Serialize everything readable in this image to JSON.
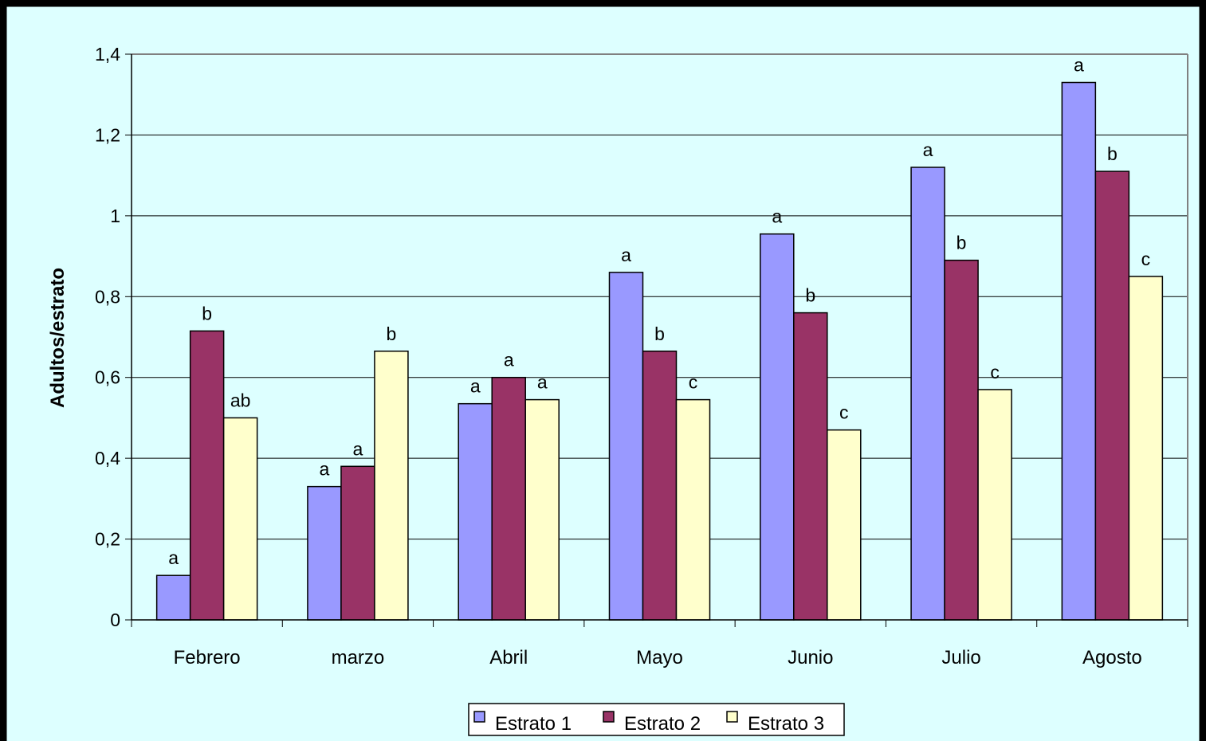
{
  "chart_data": {
    "type": "bar",
    "title": "",
    "xlabel": "",
    "ylabel": "Adultos/estrato",
    "ylim": [
      0,
      1.4
    ],
    "yticks": [
      "0",
      "0,2",
      "0,4",
      "0,6",
      "0,8",
      "1",
      "1,2",
      "1,4"
    ],
    "grid": true,
    "legend_position": "bottom-center",
    "categories": [
      "Febrero",
      "marzo",
      "Abril",
      "Mayo",
      "Junio",
      "Julio",
      "Agosto"
    ],
    "series": [
      {
        "name": "Estrato 1",
        "color": "#9999FF",
        "values": [
          0.11,
          0.33,
          0.535,
          0.86,
          0.955,
          1.12,
          1.33
        ],
        "labels": [
          "a",
          "a",
          "a",
          "a",
          "a",
          "a",
          "a"
        ]
      },
      {
        "name": "Estrato 2",
        "color": "#993366",
        "values": [
          0.715,
          0.38,
          0.6,
          0.665,
          0.76,
          0.89,
          1.11
        ],
        "labels": [
          "b",
          "a",
          "a",
          "b",
          "b",
          "b",
          "b"
        ]
      },
      {
        "name": "Estrato 3",
        "color": "#FFFFCC",
        "values": [
          0.5,
          0.665,
          0.545,
          0.545,
          0.47,
          0.57,
          0.85
        ],
        "labels": [
          "ab",
          "b",
          "a",
          "c",
          "c",
          "c",
          "c"
        ]
      }
    ],
    "background_color": "#DDFFFF",
    "frame_color": "#000000"
  }
}
